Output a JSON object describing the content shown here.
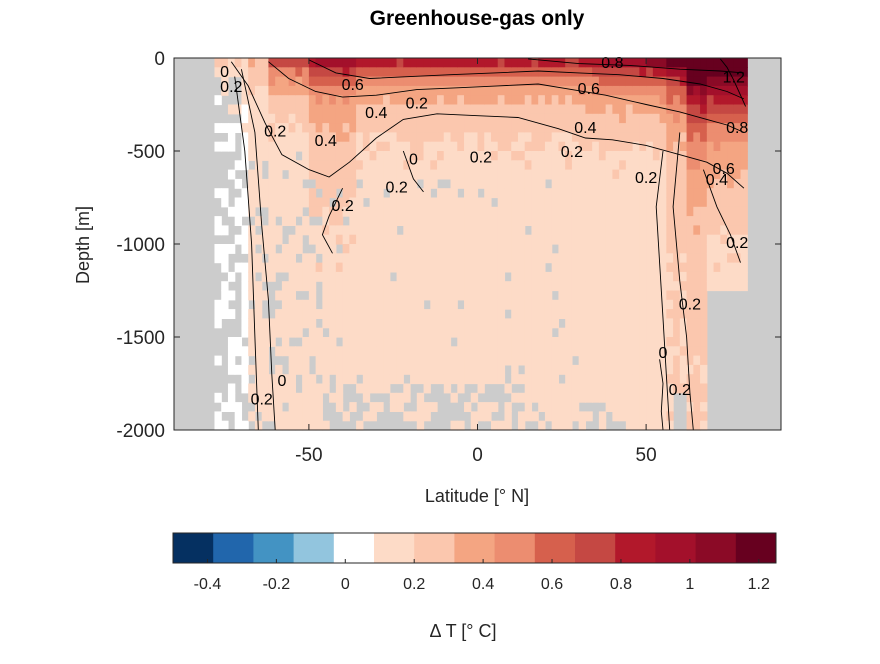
{
  "chart_data": {
    "type": "heatmap",
    "title": "Greenhouse-gas only",
    "xlabel": "Latitude [° N]",
    "ylabel": "Depth [m]",
    "xlim": [
      -90,
      90
    ],
    "ylim": [
      -2000,
      0
    ],
    "xticks": [
      -50,
      0,
      50
    ],
    "yticks": [
      0,
      -500,
      -1000,
      -1500,
      -2000
    ],
    "colorbar": {
      "label": "Δ T  [° C]",
      "range": [
        -0.5,
        1.25
      ],
      "ticks": [
        -0.4,
        -0.2,
        0,
        0.2,
        0.4,
        0.6,
        0.8,
        1,
        1.2
      ],
      "colors": [
        "#053061",
        "#2166ac",
        "#4393c3",
        "#92c5de",
        "#ffffff",
        "#fddbc7",
        "#fbc7ae",
        "#f4a582",
        "#ec8d70",
        "#d6604d",
        "#c54843",
        "#b2182b",
        "#a3102b",
        "#8b0a26",
        "#67001f"
      ]
    },
    "land_color": "#cccccc",
    "contour_labels": [
      {
        "text": "0",
        "lat": -75,
        "depth": -80
      },
      {
        "text": "0.2",
        "lat": -73,
        "depth": -160
      },
      {
        "text": "0.2",
        "lat": -60,
        "depth": -400
      },
      {
        "text": "0.4",
        "lat": -45,
        "depth": -450
      },
      {
        "text": "0.6",
        "lat": -37,
        "depth": -150
      },
      {
        "text": "0.4",
        "lat": -30,
        "depth": -300
      },
      {
        "text": "0.2",
        "lat": -18,
        "depth": -250
      },
      {
        "text": "0",
        "lat": -19,
        "depth": -550
      },
      {
        "text": "0.2",
        "lat": -24,
        "depth": -700
      },
      {
        "text": "0.2",
        "lat": -40,
        "depth": -800
      },
      {
        "text": "0.2",
        "lat": 1,
        "depth": -540
      },
      {
        "text": "0.8",
        "lat": 40,
        "depth": -30
      },
      {
        "text": "0.6",
        "lat": 33,
        "depth": -170
      },
      {
        "text": "0.4",
        "lat": 32,
        "depth": -380
      },
      {
        "text": "0.2",
        "lat": 28,
        "depth": -510
      },
      {
        "text": "0.2",
        "lat": 50,
        "depth": -650
      },
      {
        "text": "0.6",
        "lat": 73,
        "depth": -600
      },
      {
        "text": "0.4",
        "lat": 71,
        "depth": -660
      },
      {
        "text": "0.8",
        "lat": 77,
        "depth": -380
      },
      {
        "text": "1.2",
        "lat": 76,
        "depth": -110
      },
      {
        "text": "0.2",
        "lat": 77,
        "depth": -1000
      },
      {
        "text": "0.2",
        "lat": 63,
        "depth": -1330
      },
      {
        "text": "0",
        "lat": 55,
        "depth": -1590
      },
      {
        "text": "0.2",
        "lat": 60,
        "depth": -1790
      },
      {
        "text": "0.2",
        "lat": -64,
        "depth": -1840
      },
      {
        "text": "0",
        "lat": -58,
        "depth": -1740
      }
    ]
  }
}
